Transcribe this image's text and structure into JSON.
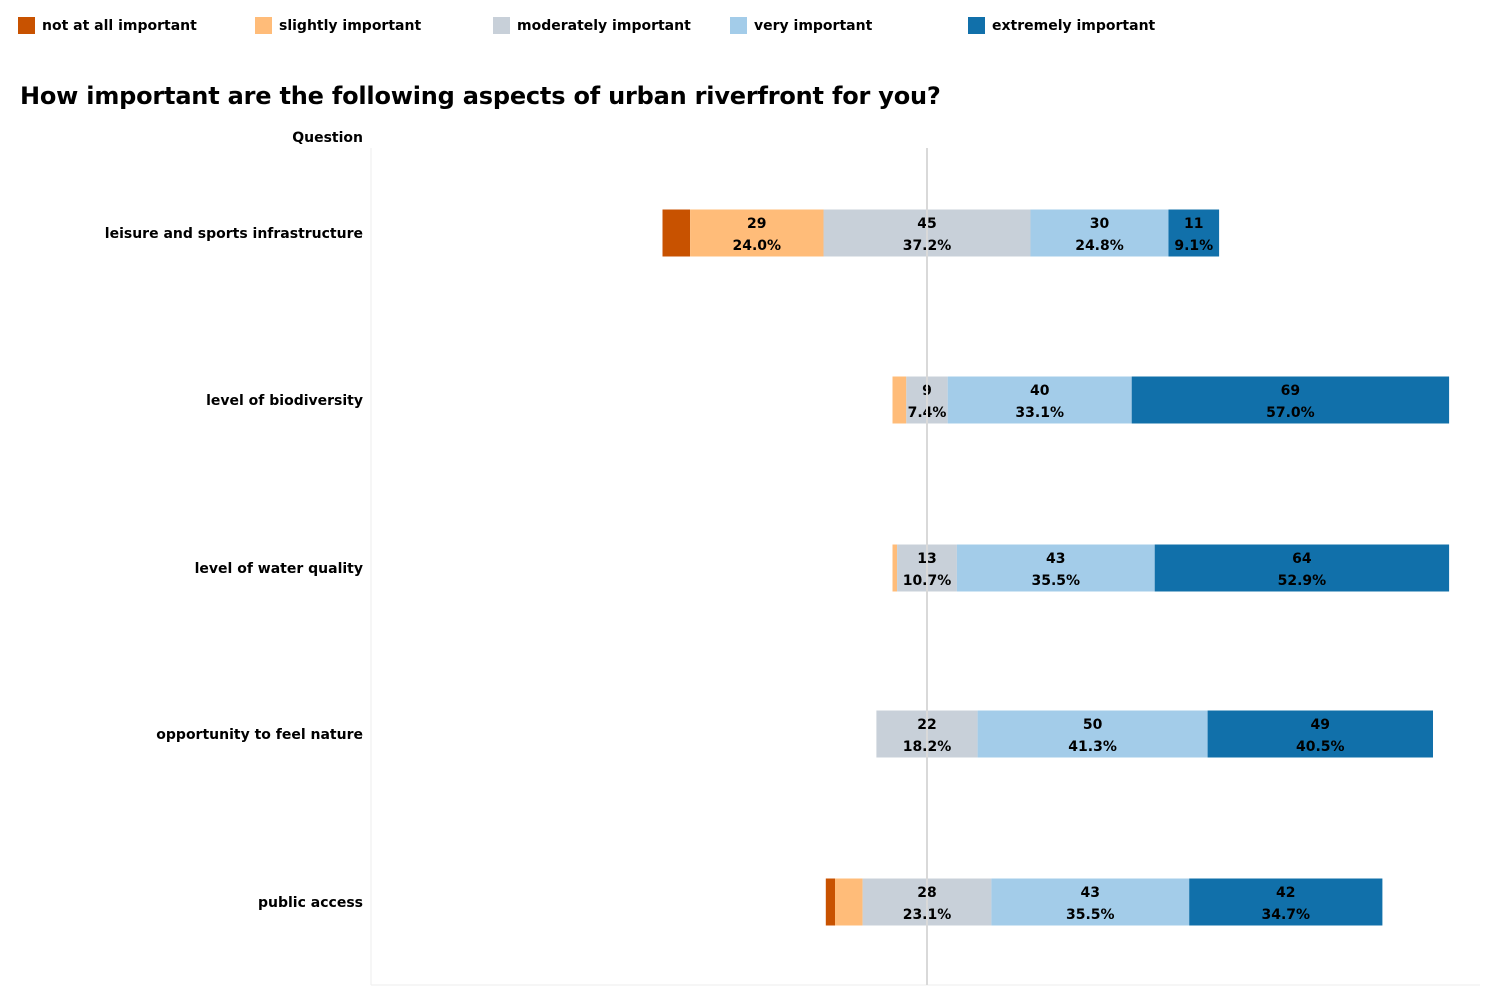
{
  "colors": {
    "not_at_all": "#c85200",
    "slightly": "#ffbc79",
    "moderately": "#c8d0d9",
    "very": "#a3cce9",
    "extremely": "#1170aa",
    "zero_line": "#d9d9d9",
    "axis_line": "#eeeeee"
  },
  "legend": [
    {
      "label": "not at all important",
      "color": "#c85200"
    },
    {
      "label": "slightly important",
      "color": "#ffbc79"
    },
    {
      "label": "moderately important",
      "color": "#c8d0d9"
    },
    {
      "label": "very important",
      "color": "#a3cce9"
    },
    {
      "label": "extremely important",
      "color": "#1170aa"
    }
  ],
  "title": "How important are the following aspects of urban riverfront for you?",
  "column_header": "Question",
  "chart_data": {
    "type": "bar",
    "orientation": "horizontal",
    "stacked": "diverging",
    "center": "middle of moderately important",
    "categories": [
      "leisure and sports infrastructure",
      "level of biodiversity",
      "level of water quality",
      "opportunity to feel nature",
      "public access"
    ],
    "series": [
      {
        "name": "not at all important",
        "counts": [
          6,
          0,
          0,
          0,
          2
        ]
      },
      {
        "name": "slightly important",
        "counts": [
          29,
          3,
          1,
          0,
          6
        ]
      },
      {
        "name": "moderately important",
        "counts": [
          45,
          9,
          13,
          22,
          28
        ]
      },
      {
        "name": "very important",
        "counts": [
          30,
          40,
          43,
          50,
          43
        ]
      },
      {
        "name": "extremely important",
        "counts": [
          11,
          69,
          64,
          49,
          42
        ]
      }
    ],
    "labels": [
      [
        null,
        {
          "count": "29",
          "pct": "24.0%"
        },
        {
          "count": "45",
          "pct": "37.2%"
        },
        {
          "count": "30",
          "pct": "24.8%"
        },
        {
          "count": "11",
          "pct": "9.1%"
        }
      ],
      [
        null,
        null,
        {
          "count": "9",
          "pct": "7.4%"
        },
        {
          "count": "40",
          "pct": "33.1%"
        },
        {
          "count": "69",
          "pct": "57.0%"
        }
      ],
      [
        null,
        null,
        {
          "count": "13",
          "pct": "10.7%"
        },
        {
          "count": "43",
          "pct": "35.5%"
        },
        {
          "count": "64",
          "pct": "52.9%"
        }
      ],
      [
        null,
        null,
        {
          "count": "22",
          "pct": "18.2%"
        },
        {
          "count": "50",
          "pct": "41.3%"
        },
        {
          "count": "49",
          "pct": "40.5%"
        }
      ],
      [
        null,
        null,
        {
          "count": "28",
          "pct": "23.1%"
        },
        {
          "count": "43",
          "pct": "35.5%"
        },
        {
          "count": "42",
          "pct": "34.7%"
        }
      ]
    ],
    "grid": false,
    "legend_position": "top"
  }
}
